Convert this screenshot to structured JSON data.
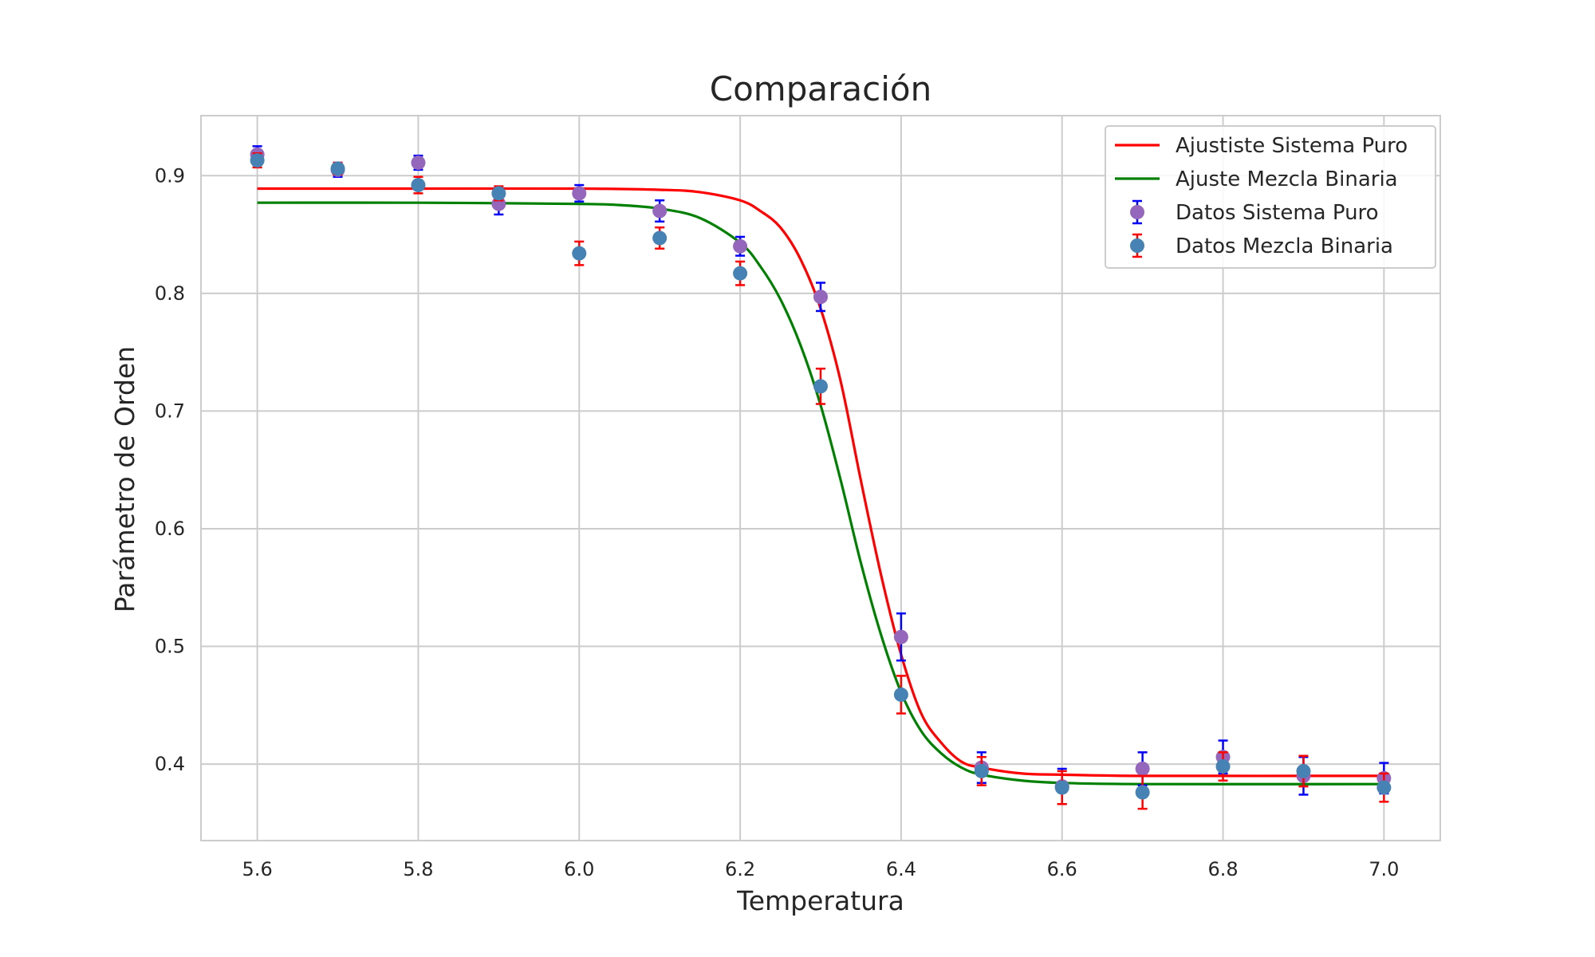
{
  "chart_data": {
    "type": "scatter",
    "title": "Comparación",
    "xlabel": "Temperatura",
    "ylabel": "Parámetro de Orden",
    "xlim": [
      5.53,
      7.07
    ],
    "ylim": [
      0.335,
      0.951
    ],
    "xticks": [
      5.6,
      5.8,
      6.0,
      6.2,
      6.4,
      6.6,
      6.8,
      7.0
    ],
    "xtick_labels": [
      "5.6",
      "5.8",
      "6.0",
      "6.2",
      "6.4",
      "6.6",
      "6.8",
      "7.0"
    ],
    "yticks": [
      0.4,
      0.5,
      0.6,
      0.7,
      0.8,
      0.9
    ],
    "ytick_labels": [
      "0.4",
      "0.5",
      "0.6",
      "0.7",
      "0.8",
      "0.9"
    ],
    "grid": true,
    "legend_position": "upper right",
    "legend": [
      {
        "label": "Ajustiste Sistema Puro",
        "kind": "line",
        "color": "#ff0000"
      },
      {
        "label": "Ajuste Mezcla Binaria",
        "kind": "line",
        "color": "#008000"
      },
      {
        "label": "Datos Sistema Puro",
        "kind": "errorbar",
        "color": "#9467bd",
        "ecolor": "#0000ff"
      },
      {
        "label": "Datos Mezcla Binaria",
        "kind": "errorbar",
        "color": "#4682b4",
        "ecolor": "#ff0000"
      }
    ],
    "series": [
      {
        "name": "Datos Sistema Puro",
        "kind": "errorbar",
        "color": "#9467bd",
        "ecolor": "#0000ff",
        "x": [
          5.6,
          5.7,
          5.8,
          5.9,
          6.0,
          6.1,
          6.2,
          6.3,
          6.4,
          6.5,
          6.6,
          6.7,
          6.8,
          6.9,
          7.0
        ],
        "y": [
          0.918,
          0.905,
          0.911,
          0.876,
          0.885,
          0.87,
          0.84,
          0.797,
          0.508,
          0.397,
          0.381,
          0.396,
          0.406,
          0.39,
          0.388
        ],
        "yerr": [
          0.007,
          0.006,
          0.006,
          0.009,
          0.007,
          0.009,
          0.008,
          0.012,
          0.02,
          0.013,
          0.015,
          0.014,
          0.014,
          0.016,
          0.013
        ]
      },
      {
        "name": "Datos Mezcla Binaria",
        "kind": "errorbar",
        "color": "#4682b4",
        "ecolor": "#ff0000",
        "x": [
          5.6,
          5.7,
          5.8,
          5.9,
          6.0,
          6.1,
          6.2,
          6.3,
          6.4,
          6.5,
          6.6,
          6.7,
          6.8,
          6.9,
          7.0
        ],
        "y": [
          0.913,
          0.906,
          0.892,
          0.885,
          0.834,
          0.847,
          0.817,
          0.721,
          0.459,
          0.394,
          0.38,
          0.376,
          0.398,
          0.394,
          0.38
        ],
        "yerr": [
          0.006,
          0.005,
          0.007,
          0.006,
          0.01,
          0.009,
          0.01,
          0.015,
          0.016,
          0.012,
          0.014,
          0.014,
          0.012,
          0.013,
          0.012
        ]
      },
      {
        "name": "Ajustiste Sistema Puro",
        "kind": "line",
        "color": "#ff0000",
        "x": [
          5.6,
          5.8,
          6.0,
          6.1,
          6.15,
          6.2,
          6.225,
          6.25,
          6.275,
          6.3,
          6.325,
          6.35,
          6.375,
          6.4,
          6.425,
          6.45,
          6.475,
          6.5,
          6.55,
          6.6,
          6.7,
          7.0
        ],
        "y": [
          0.889,
          0.889,
          0.889,
          0.888,
          0.886,
          0.879,
          0.87,
          0.856,
          0.829,
          0.787,
          0.725,
          0.641,
          0.561,
          0.493,
          0.443,
          0.418,
          0.402,
          0.397,
          0.392,
          0.391,
          0.39,
          0.39
        ]
      },
      {
        "name": "Ajuste Mezcla Binaria",
        "kind": "line",
        "color": "#008000",
        "x": [
          5.6,
          5.8,
          6.0,
          6.05,
          6.1,
          6.15,
          6.2,
          6.225,
          6.25,
          6.275,
          6.3,
          6.325,
          6.35,
          6.375,
          6.4,
          6.425,
          6.45,
          6.475,
          6.5,
          6.55,
          6.6,
          6.7,
          7.0
        ],
        "y": [
          0.877,
          0.877,
          0.876,
          0.875,
          0.872,
          0.864,
          0.843,
          0.823,
          0.795,
          0.756,
          0.705,
          0.641,
          0.571,
          0.51,
          0.461,
          0.428,
          0.409,
          0.397,
          0.391,
          0.386,
          0.384,
          0.383,
          0.383
        ]
      }
    ]
  }
}
